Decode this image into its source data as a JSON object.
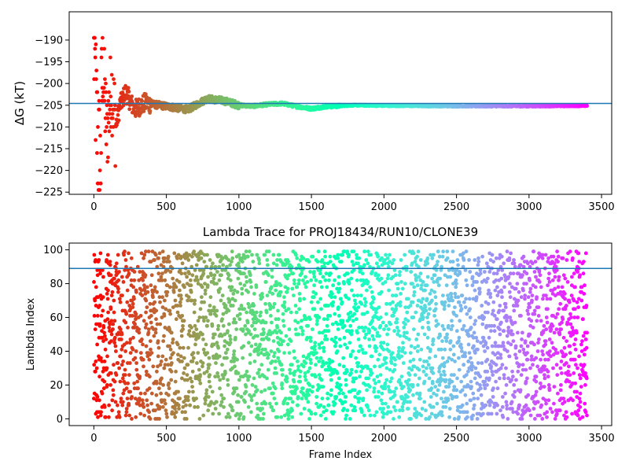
{
  "chart_data": [
    {
      "type": "scatter",
      "title": "",
      "xlabel": "",
      "ylabel": "ΔG (kT)",
      "xlim": [
        -170,
        3570
      ],
      "ylim": [
        -225.5,
        -183.5
      ],
      "xticks": [
        0,
        500,
        1000,
        1500,
        2000,
        2500,
        3000,
        3500
      ],
      "yticks": [
        -190,
        -195,
        -200,
        -205,
        -210,
        -215,
        -220,
        -225
      ],
      "hline": -204.6,
      "colormap": "rainbow (red at frame 0 to violet at frame 3400)",
      "frames": [
        0,
        3400
      ],
      "trend": [
        [
          0,
          -190
        ],
        [
          20,
          -210
        ],
        [
          45,
          -220
        ],
        [
          60,
          -195
        ],
        [
          90,
          -212
        ],
        [
          120,
          -200
        ],
        [
          150,
          -210
        ],
        [
          180,
          -205
        ],
        [
          220,
          -202
        ],
        [
          280,
          -206
        ],
        [
          350,
          -204.5
        ],
        [
          450,
          -205
        ],
        [
          550,
          -205.5
        ],
        [
          650,
          -206
        ],
        [
          700,
          -205
        ],
        [
          780,
          -203.5
        ],
        [
          900,
          -204
        ],
        [
          1000,
          -205
        ],
        [
          1100,
          -205.2
        ],
        [
          1200,
          -204.8
        ],
        [
          1300,
          -204.6
        ],
        [
          1400,
          -205.3
        ],
        [
          1500,
          -205.8
        ],
        [
          1600,
          -205.3
        ],
        [
          1800,
          -205
        ],
        [
          2000,
          -205.1
        ],
        [
          2500,
          -205.2
        ],
        [
          3000,
          -205.2
        ],
        [
          3400,
          -205.1
        ]
      ],
      "grid": false
    },
    {
      "type": "scatter",
      "title": "Lambda Trace for PROJ18434/RUN10/CLONE39",
      "xlabel": "Frame Index",
      "ylabel": "Lambda Index",
      "xlim": [
        -170,
        3570
      ],
      "ylim": [
        -4,
        104
      ],
      "xticks": [
        0,
        500,
        1000,
        1500,
        2000,
        2500,
        3000,
        3500
      ],
      "yticks": [
        0,
        20,
        40,
        60,
        80,
        100
      ],
      "hline": 89,
      "colormap": "rainbow (red at frame 0 to violet at frame 3400)",
      "frames": [
        0,
        3400
      ],
      "lambda_range": [
        0,
        99
      ],
      "grid": false
    }
  ]
}
